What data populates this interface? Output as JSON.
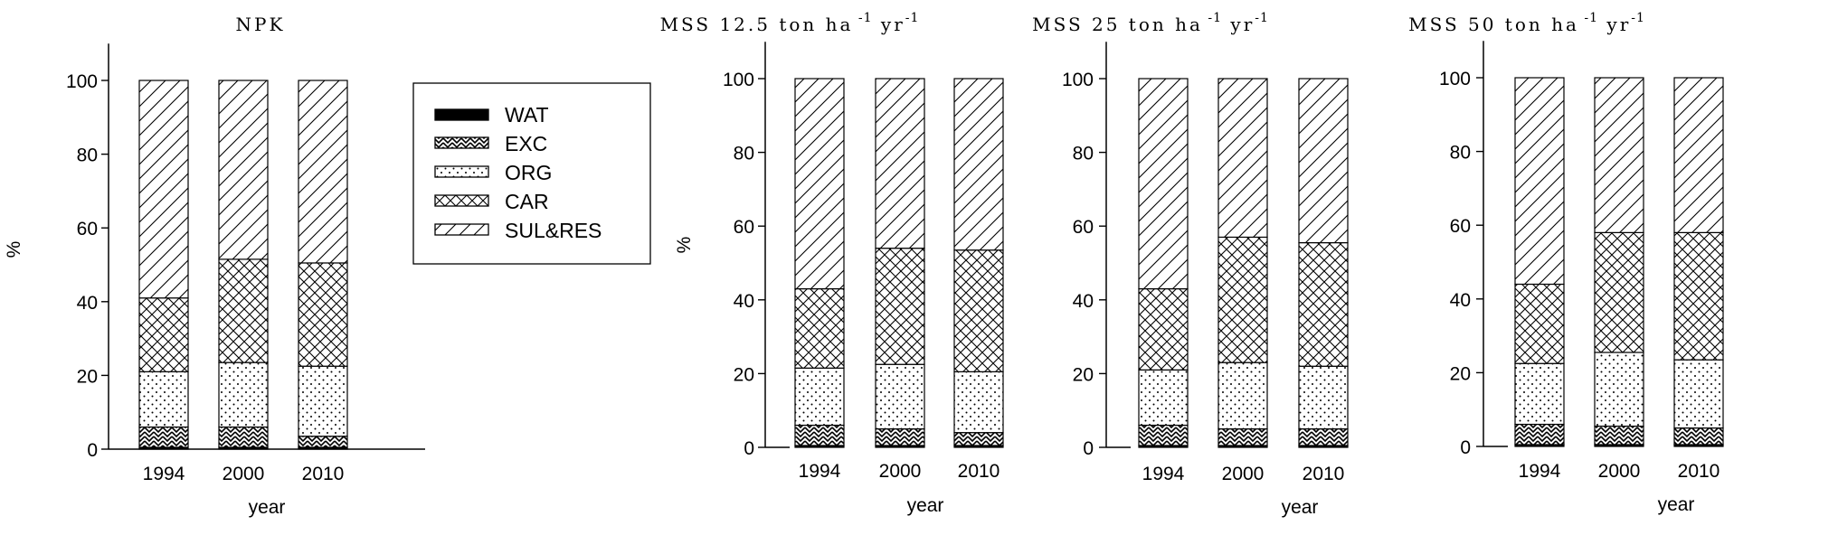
{
  "chart_data": [
    {
      "type": "bar",
      "stacked": true,
      "title": "NPK",
      "xlabel": "year",
      "ylabel": "%",
      "categories": [
        "1994",
        "2000",
        "2010"
      ],
      "yticks": [
        "0",
        "20",
        "40",
        "60",
        "80",
        "100"
      ],
      "ylim": [
        0,
        110
      ],
      "series": [
        {
          "name": "WAT",
          "values": [
            0.5,
            0.5,
            0.5
          ]
        },
        {
          "name": "EXC",
          "values": [
            5.5,
            5.5,
            3.0
          ]
        },
        {
          "name": "ORG",
          "values": [
            15,
            17.5,
            19
          ]
        },
        {
          "name": "CAR",
          "values": [
            20,
            28,
            28
          ]
        },
        {
          "name": "SUL&RES",
          "values": [
            59,
            48.5,
            49.5
          ]
        }
      ]
    },
    {
      "type": "bar",
      "stacked": true,
      "title": "MSS 12.5 ton ha",
      "title_unit": "yr",
      "title_exp": "-1",
      "xlabel": "year",
      "ylabel": "%",
      "categories": [
        "1994",
        "2000",
        "2010"
      ],
      "yticks": [
        "0",
        "20",
        "40",
        "60",
        "80",
        "100"
      ],
      "ylim": [
        0,
        110
      ],
      "series": [
        {
          "name": "WAT",
          "values": [
            0.5,
            0.5,
            0.5
          ]
        },
        {
          "name": "EXC",
          "values": [
            5.5,
            4.5,
            3.5
          ]
        },
        {
          "name": "ORG",
          "values": [
            15.5,
            17.5,
            16.5
          ]
        },
        {
          "name": "CAR",
          "values": [
            21.5,
            31.5,
            33
          ]
        },
        {
          "name": "SUL&RES",
          "values": [
            57,
            46,
            46.5
          ]
        }
      ]
    },
    {
      "type": "bar",
      "stacked": true,
      "title": "MSS 25 ton ha",
      "title_unit": "yr",
      "title_exp": "-1",
      "xlabel": "year",
      "ylabel": "",
      "categories": [
        "1994",
        "2000",
        "2010"
      ],
      "yticks": [
        "0",
        "20",
        "40",
        "60",
        "80",
        "100"
      ],
      "ylim": [
        0,
        110
      ],
      "series": [
        {
          "name": "WAT",
          "values": [
            0.5,
            0.5,
            0.5
          ]
        },
        {
          "name": "EXC",
          "values": [
            5.5,
            4.5,
            4.5
          ]
        },
        {
          "name": "ORG",
          "values": [
            15,
            18,
            17
          ]
        },
        {
          "name": "CAR",
          "values": [
            22,
            34,
            33.5
          ]
        },
        {
          "name": "SUL&RES",
          "values": [
            57,
            43,
            44.5
          ]
        }
      ]
    },
    {
      "type": "bar",
      "stacked": true,
      "title": "MSS 50 ton ha",
      "title_unit": "yr",
      "title_exp": "-1",
      "xlabel": "year",
      "ylabel": "",
      "categories": [
        "1994",
        "2000",
        "2010"
      ],
      "yticks": [
        "0",
        "20",
        "40",
        "60",
        "80",
        "100"
      ],
      "ylim": [
        0,
        110
      ],
      "series": [
        {
          "name": "WAT",
          "values": [
            0.5,
            0.5,
            0.5
          ]
        },
        {
          "name": "EXC",
          "values": [
            5.5,
            5,
            4.5
          ]
        },
        {
          "name": "ORG",
          "values": [
            16.5,
            20,
            18.5
          ]
        },
        {
          "name": "CAR",
          "values": [
            21.5,
            32.5,
            34.5
          ]
        },
        {
          "name": "SUL&RES",
          "values": [
            56,
            42,
            42
          ]
        }
      ]
    }
  ],
  "legend": {
    "placement": "between NPK and MSS 12.5 panels, upper area",
    "items": [
      {
        "label": "WAT",
        "pattern": "solid-black"
      },
      {
        "label": "EXC",
        "pattern": "zigzag"
      },
      {
        "label": "ORG",
        "pattern": "dots"
      },
      {
        "label": "CAR",
        "pattern": "crosshatch"
      },
      {
        "label": "SUL&RES",
        "pattern": "diagonal"
      }
    ]
  }
}
